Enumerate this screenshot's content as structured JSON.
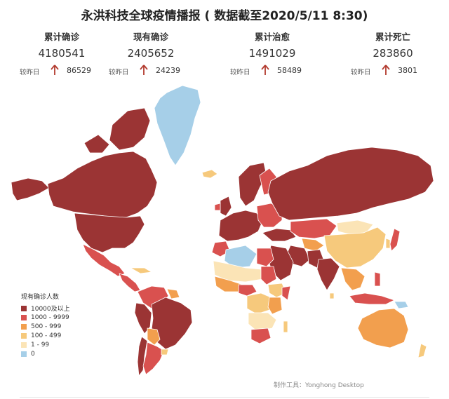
{
  "title": "永洪科技全球疫情播报 ( 数据截至2020/5/11 8:30)",
  "stats": [
    {
      "label": "累计确诊",
      "value": "4180541",
      "delta_label": "较昨日",
      "delta": "86529"
    },
    {
      "label": "现有确诊",
      "value": "2405652",
      "delta_label": "较昨日",
      "delta": "24239"
    },
    {
      "label": "累计治愈",
      "value": "1491029",
      "delta_label": "较昨日",
      "delta": "58489"
    },
    {
      "label": "累计死亡",
      "value": "283860",
      "delta_label": "较昨日",
      "delta": "3801"
    }
  ],
  "legend": {
    "title": "现有确诊人数",
    "items": [
      {
        "label": "10000及以上",
        "color": "#9b3434"
      },
      {
        "label": "1000 - 9999",
        "color": "#d9514f"
      },
      {
        "label": "500 - 999",
        "color": "#f29f4e"
      },
      {
        "label": "100 - 499",
        "color": "#f6c97c"
      },
      {
        "label": "1 - 99",
        "color": "#fbe4b6"
      },
      {
        "label": "0",
        "color": "#a6cfe8"
      }
    ]
  },
  "arrow_color": "#b23a2e",
  "footer": "制作工具：Yonghong Desktop"
}
